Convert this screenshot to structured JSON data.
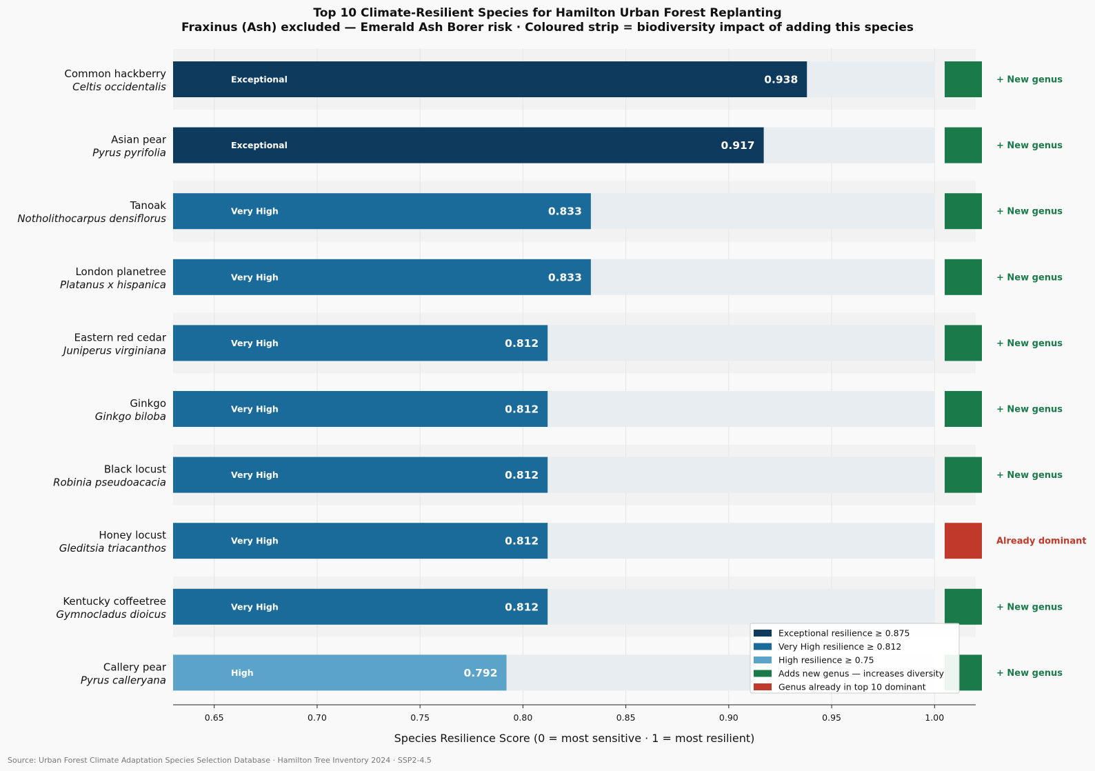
{
  "title_line1": "Top 10 Climate-Resilient Species for Hamilton Urban Forest Replanting",
  "title_line2": "Fraxinus (Ash) excluded — Emerald Ash Borer risk  ·  Coloured strip = biodiversity impact of adding this species",
  "source_note": "Source: Urban Forest Climate Adaptation Species Selection Database · Hamilton Tree Inventory 2024 · SSP2-4.5",
  "colors": {
    "exceptional": "#0e3a5e",
    "very_high": "#1b6b9a",
    "high": "#5ba3c9",
    "new_genus": "#1b7a4a",
    "dominant": "#c0392b",
    "track": "#e8edf1",
    "band": "#f2f2f2"
  },
  "chart_data": {
    "type": "bar",
    "orientation": "horizontal",
    "title": "Top 10 Climate-Resilient Species for Hamilton Urban Forest Replanting",
    "subtitle": "Fraxinus (Ash) excluded — Emerald Ash Borer risk  ·  Coloured strip = biodiversity impact of adding this species",
    "xlabel": "Species Resilience Score  (0 = most sensitive · 1 = most resilient)",
    "xlim": [
      0.63,
      1.02
    ],
    "xticks": [
      "0.65",
      "0.70",
      "0.75",
      "0.80",
      "0.85",
      "0.90",
      "0.95",
      "1.00"
    ],
    "xtick_values": [
      0.65,
      0.7,
      0.75,
      0.8,
      0.85,
      0.9,
      0.95,
      1.0
    ],
    "grid": true,
    "legend_position": "bottom-right",
    "rows": [
      {
        "common": "Common hackberry",
        "latin": "Celtis occidentalis",
        "value": 0.938,
        "value_label": "0.938",
        "tier": "Exceptional",
        "tier_key": "exceptional",
        "impact": "+ New genus",
        "impact_key": "new_genus"
      },
      {
        "common": "Asian pear",
        "latin": "Pyrus pyrifolia",
        "value": 0.917,
        "value_label": "0.917",
        "tier": "Exceptional",
        "tier_key": "exceptional",
        "impact": "+ New genus",
        "impact_key": "new_genus"
      },
      {
        "common": "Tanoak",
        "latin": "Notholithocarpus densiflorus",
        "value": 0.833,
        "value_label": "0.833",
        "tier": "Very High",
        "tier_key": "very_high",
        "impact": "+ New genus",
        "impact_key": "new_genus"
      },
      {
        "common": "London planetree",
        "latin": "Platanus x hispanica",
        "value": 0.833,
        "value_label": "0.833",
        "tier": "Very High",
        "tier_key": "very_high",
        "impact": "+ New genus",
        "impact_key": "new_genus"
      },
      {
        "common": "Eastern red cedar",
        "latin": "Juniperus virginiana",
        "value": 0.812,
        "value_label": "0.812",
        "tier": "Very High",
        "tier_key": "very_high",
        "impact": "+ New genus",
        "impact_key": "new_genus"
      },
      {
        "common": "Ginkgo",
        "latin": "Ginkgo biloba",
        "value": 0.812,
        "value_label": "0.812",
        "tier": "Very High",
        "tier_key": "very_high",
        "impact": "+ New genus",
        "impact_key": "new_genus"
      },
      {
        "common": "Black locust",
        "latin": "Robinia pseudoacacia",
        "value": 0.812,
        "value_label": "0.812",
        "tier": "Very High",
        "tier_key": "very_high",
        "impact": "+ New genus",
        "impact_key": "new_genus"
      },
      {
        "common": "Honey locust",
        "latin": "Gleditsia triacanthos",
        "value": 0.812,
        "value_label": "0.812",
        "tier": "Very High",
        "tier_key": "very_high",
        "impact": "Already dominant",
        "impact_key": "dominant"
      },
      {
        "common": "Kentucky coffeetree",
        "latin": "Gymnocladus dioicus",
        "value": 0.812,
        "value_label": "0.812",
        "tier": "Very High",
        "tier_key": "very_high",
        "impact": "+ New genus",
        "impact_key": "new_genus"
      },
      {
        "common": "Callery pear",
        "latin": "Pyrus calleryana",
        "value": 0.792,
        "value_label": "0.792",
        "tier": "High",
        "tier_key": "high",
        "impact": "+ New genus",
        "impact_key": "new_genus"
      }
    ],
    "legend": [
      {
        "label": "Exceptional resilience  ≥ 0.875",
        "color_key": "exceptional"
      },
      {
        "label": "Very High resilience  ≥ 0.812",
        "color_key": "very_high"
      },
      {
        "label": "High resilience  ≥ 0.75",
        "color_key": "high"
      },
      {
        "label": "Adds new genus — increases diversity",
        "color_key": "new_genus"
      },
      {
        "label": "Genus already in top 10 dominant",
        "color_key": "dominant"
      }
    ]
  }
}
